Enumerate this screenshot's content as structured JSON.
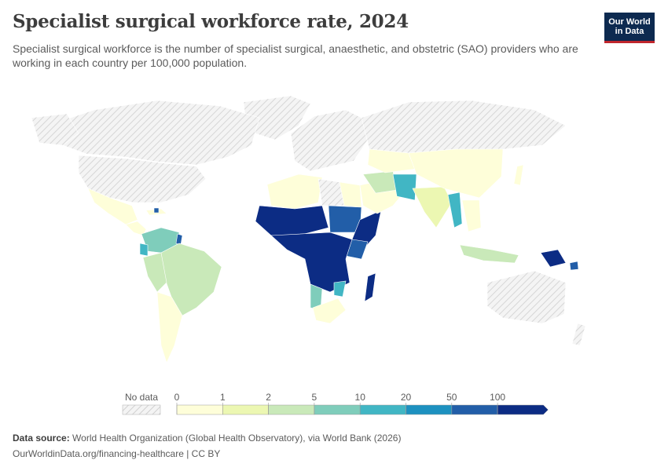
{
  "title": "Specialist surgical workforce rate, 2024",
  "subtitle": "Specialist surgical workforce is the number of specialist surgical, anaesthetic, and obstetric (SAO) providers who are working in each country per 100,000 population.",
  "logo": {
    "line1": "Our World",
    "line2": "in Data"
  },
  "legend": {
    "no_data_label": "No data",
    "ticks": [
      "0",
      "1",
      "2",
      "5",
      "10",
      "20",
      "50",
      "100"
    ],
    "colors": [
      "#fefed9",
      "#ecf7b2",
      "#c9e9b9",
      "#7fcdbb",
      "#41b6c4",
      "#1d91c0",
      "#225ea8",
      "#0c2c84"
    ]
  },
  "footer": {
    "source_label": "Data source:",
    "source_text": "World Health Organization (Global Health Observatory), via World Bank (2026)",
    "url_text": "OurWorldinData.org/financing-healthcare | CC BY"
  }
}
